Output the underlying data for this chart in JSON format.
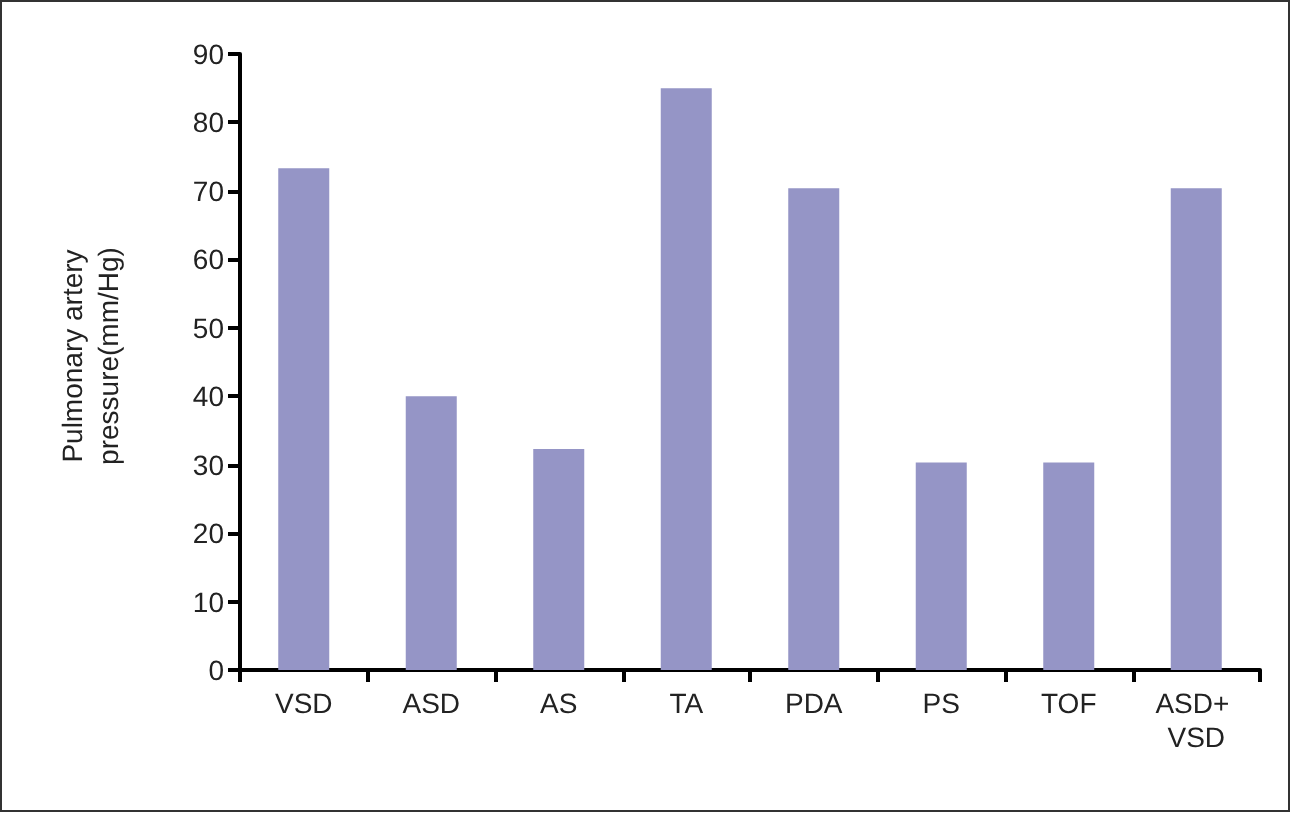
{
  "chart_data": {
    "type": "bar",
    "ylabel": "Pulmonary artery pressure(mm/Hg)",
    "categories": [
      "VSD",
      "ASD",
      "AS",
      "TA",
      "PDA",
      "PS",
      "TOF",
      "ASD+ VSD"
    ],
    "values": [
      73.3,
      40,
      32.3,
      85,
      70.4,
      30.3,
      30.3,
      70.4
    ],
    "color": "#9595c6",
    "ylim": [
      0,
      90
    ],
    "yticks": [
      0,
      10,
      20,
      30,
      40,
      50,
      60,
      70,
      80,
      90
    ]
  }
}
